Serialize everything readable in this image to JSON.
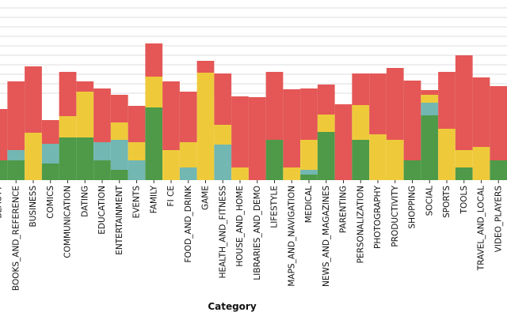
{
  "chart_data": {
    "type": "stacked_bar",
    "x_label": "Category",
    "categories": [
      "BEAUTY",
      "BOOKS_AND_REFERENCE",
      "BUSINESS",
      "COMICS",
      "COMMUNICATION",
      "DATING",
      "EDUCATION",
      "ENTERTAINMENT",
      "EVENTS",
      "FAMILY",
      "FI  CE",
      "FOOD_AND_DRINK",
      "GAME",
      "HEALTH_AND_FITNESS",
      "HOUSE_AND_HOME",
      "LIBRARIES_AND_DEMO",
      "LIFESTYLE",
      "MAPS_AND_NAVIGATION",
      "MEDICAL",
      "NEWS_AND_MAGAZINES",
      "PARENTING",
      "PERSONALIZATION",
      "PHOTOGRAPHY",
      "PRODUCTIVITY",
      "SHOPPING",
      "SOCIAL",
      "SPORTS",
      "TOOLS",
      "TRAVEL_AND_LOCAL",
      "VIDEO_PLAYERS"
    ],
    "series": [
      {
        "color": "#4e9a48",
        "values": [
          25,
          25,
          0,
          21,
          54,
          54,
          25,
          13,
          0,
          92,
          0,
          0,
          0,
          0,
          0,
          0,
          51,
          0,
          7,
          61,
          0,
          51,
          0,
          0,
          25,
          82,
          0,
          16,
          0,
          25
        ]
      },
      {
        "color": "#72b7b2",
        "values": [
          0,
          13,
          0,
          25,
          0,
          0,
          23,
          38,
          25,
          0,
          0,
          16,
          0,
          45,
          0,
          0,
          0,
          0,
          6,
          0,
          0,
          0,
          0,
          0,
          0,
          16,
          0,
          0,
          0,
          0
        ]
      },
      {
        "color": "#eeca3b",
        "values": [
          0,
          0,
          60,
          0,
          27,
          58,
          0,
          22,
          23,
          39,
          38,
          32,
          136,
          25,
          16,
          0,
          0,
          16,
          38,
          22,
          0,
          44,
          58,
          51,
          0,
          10,
          65,
          22,
          42,
          0
        ]
      },
      {
        "color": "#e45756",
        "values": [
          65,
          87,
          84,
          30,
          56,
          13,
          68,
          35,
          46,
          42,
          87,
          64,
          15,
          65,
          90,
          105,
          86,
          99,
          65,
          38,
          96,
          40,
          77,
          91,
          101,
          6,
          72,
          120,
          88,
          94
        ]
      }
    ],
    "ylim": [
      0,
      228
    ]
  }
}
